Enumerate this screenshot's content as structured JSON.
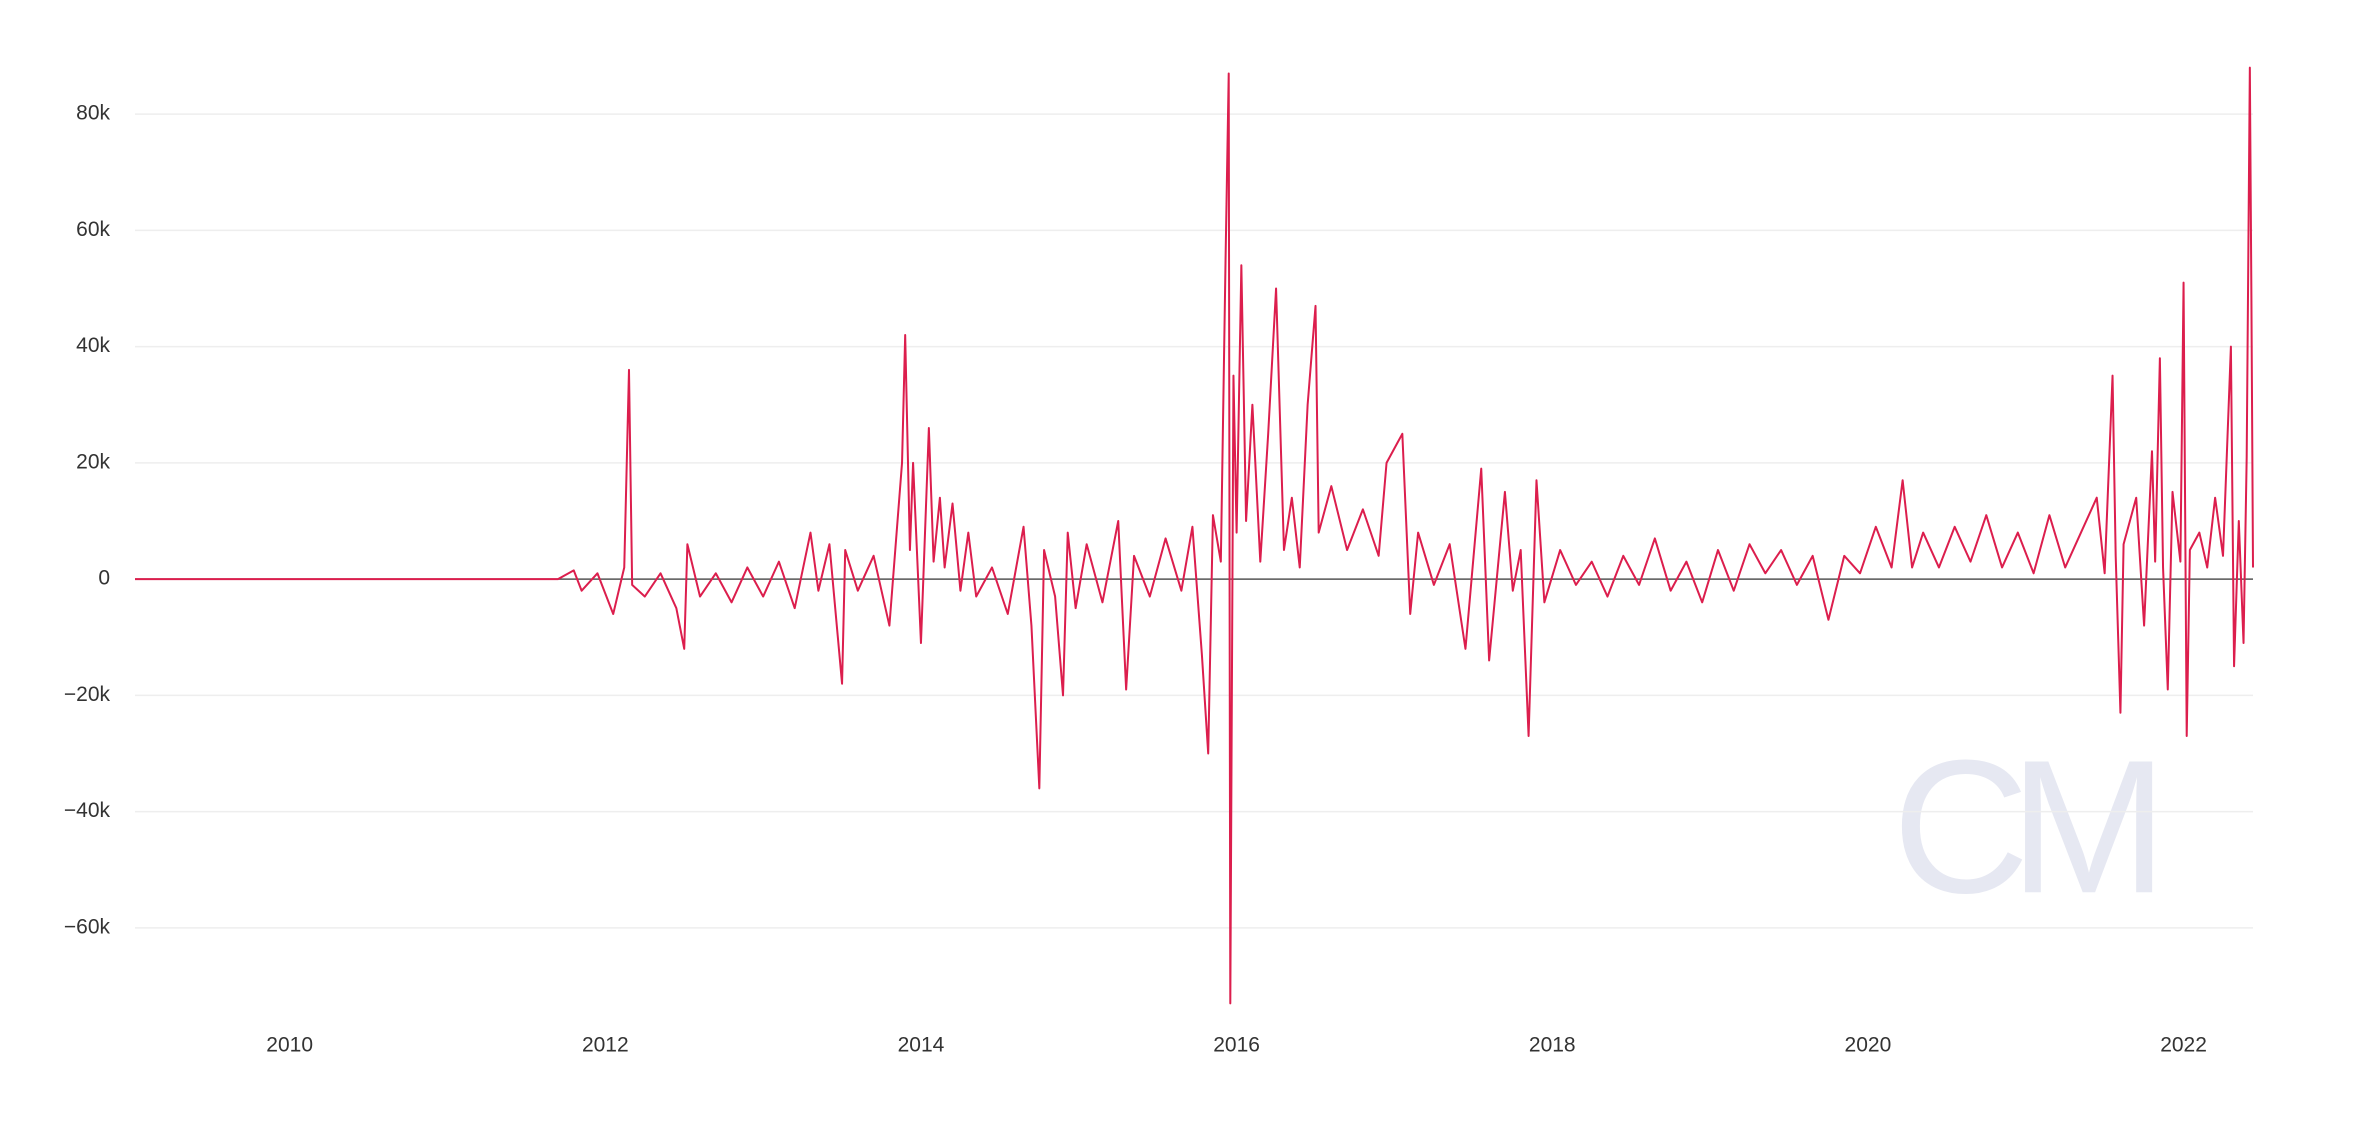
{
  "chart_data": {
    "type": "line",
    "x": [
      2009.02,
      2011.7,
      2011.8,
      2011.85,
      2011.95,
      2012.05,
      2012.12,
      2012.15,
      2012.17,
      2012.25,
      2012.35,
      2012.45,
      2012.5,
      2012.52,
      2012.6,
      2012.7,
      2012.8,
      2012.9,
      2013.0,
      2013.1,
      2013.2,
      2013.3,
      2013.35,
      2013.42,
      2013.5,
      2013.52,
      2013.6,
      2013.7,
      2013.8,
      2013.88,
      2013.9,
      2013.93,
      2013.95,
      2014.0,
      2014.05,
      2014.08,
      2014.12,
      2014.15,
      2014.2,
      2014.25,
      2014.3,
      2014.35,
      2014.45,
      2014.55,
      2014.65,
      2014.7,
      2014.75,
      2014.78,
      2014.85,
      2014.9,
      2014.93,
      2014.98,
      2015.05,
      2015.15,
      2015.25,
      2015.3,
      2015.35,
      2015.45,
      2015.55,
      2015.65,
      2015.72,
      2015.78,
      2015.82,
      2015.85,
      2015.9,
      2015.93,
      2015.95,
      2015.96,
      2015.98,
      2016.0,
      2016.03,
      2016.06,
      2016.1,
      2016.15,
      2016.2,
      2016.25,
      2016.3,
      2016.35,
      2016.4,
      2016.45,
      2016.5,
      2016.52,
      2016.6,
      2016.7,
      2016.8,
      2016.9,
      2016.95,
      2017.05,
      2017.1,
      2017.15,
      2017.25,
      2017.35,
      2017.45,
      2017.55,
      2017.6,
      2017.7,
      2017.75,
      2017.8,
      2017.85,
      2017.9,
      2017.95,
      2018.05,
      2018.15,
      2018.25,
      2018.35,
      2018.45,
      2018.55,
      2018.65,
      2018.75,
      2018.85,
      2018.95,
      2019.05,
      2019.15,
      2019.25,
      2019.35,
      2019.45,
      2019.55,
      2019.65,
      2019.75,
      2019.85,
      2019.95,
      2020.05,
      2020.15,
      2020.22,
      2020.28,
      2020.35,
      2020.45,
      2020.55,
      2020.65,
      2020.75,
      2020.85,
      2020.95,
      2021.05,
      2021.15,
      2021.25,
      2021.35,
      2021.45,
      2021.5,
      2021.55,
      2021.57,
      2021.6,
      2021.62,
      2021.7,
      2021.75,
      2021.8,
      2021.82,
      2021.85,
      2021.87,
      2021.9,
      2021.93,
      2021.98,
      2022.0,
      2022.02,
      2022.04,
      2022.1,
      2022.15,
      2022.2,
      2022.25,
      2022.3,
      2022.32,
      2022.35,
      2022.38,
      2022.4,
      2022.42,
      2022.43,
      2022.44
    ],
    "series": [
      {
        "color": "#dc1e4d",
        "values": [
          0,
          0,
          1500,
          -2000,
          1000,
          -6000,
          2000,
          36000,
          -1000,
          -3000,
          1000,
          -5000,
          -12000,
          6000,
          -3000,
          1000,
          -4000,
          2000,
          -3000,
          3000,
          -5000,
          8000,
          -2000,
          6000,
          -18000,
          5000,
          -2000,
          4000,
          -8000,
          20000,
          42000,
          5000,
          20000,
          -11000,
          26000,
          3000,
          14000,
          2000,
          13000,
          -2000,
          8000,
          -3000,
          2000,
          -6000,
          9000,
          -8000,
          -36000,
          5000,
          -3000,
          -20000,
          8000,
          -5000,
          6000,
          -4000,
          10000,
          -19000,
          4000,
          -3000,
          7000,
          -2000,
          9000,
          -13000,
          -30000,
          11000,
          3000,
          55000,
          87000,
          -73000,
          35000,
          8000,
          54000,
          10000,
          30000,
          3000,
          25000,
          50000,
          5000,
          14000,
          2000,
          30000,
          47000,
          8000,
          16000,
          5000,
          12000,
          4000,
          20000,
          25000,
          -6000,
          8000,
          -1000,
          6000,
          -12000,
          19000,
          -14000,
          15000,
          -2000,
          5000,
          -27000,
          17000,
          -4000,
          5000,
          -1000,
          3000,
          -3000,
          4000,
          -1000,
          7000,
          -2000,
          3000,
          -4000,
          5000,
          -2000,
          6000,
          1000,
          5000,
          -1000,
          4000,
          -7000,
          4000,
          1000,
          9000,
          2000,
          17000,
          2000,
          8000,
          2000,
          9000,
          3000,
          11000,
          2000,
          8000,
          1000,
          11000,
          2000,
          8000,
          14000,
          1000,
          35000,
          4000,
          -23000,
          6000,
          14000,
          -8000,
          22000,
          3000,
          38000,
          2000,
          -19000,
          15000,
          3000,
          51000,
          -27000,
          5000,
          8000,
          2000,
          14000,
          4000,
          40000,
          -15000,
          10000,
          -11000,
          21000,
          88000,
          48000,
          2000
        ]
      }
    ],
    "xlim": [
      2009.02,
      2022.44
    ],
    "xticks": [
      2010,
      2012,
      2014,
      2016,
      2018,
      2020,
      2022
    ],
    "ylim": [
      -75000,
      90000
    ],
    "yticks": [
      {
        "value": -60000,
        "label": "−60k"
      },
      {
        "value": -40000,
        "label": "−40k"
      },
      {
        "value": -20000,
        "label": "−20k"
      },
      0,
      {
        "value": 20000,
        "label": "20k"
      },
      {
        "value": 40000,
        "label": "40k"
      },
      {
        "value": 60000,
        "label": "60k"
      },
      {
        "value": 80000,
        "label": "80k"
      }
    ],
    "grid": true,
    "watermark": "CM"
  }
}
